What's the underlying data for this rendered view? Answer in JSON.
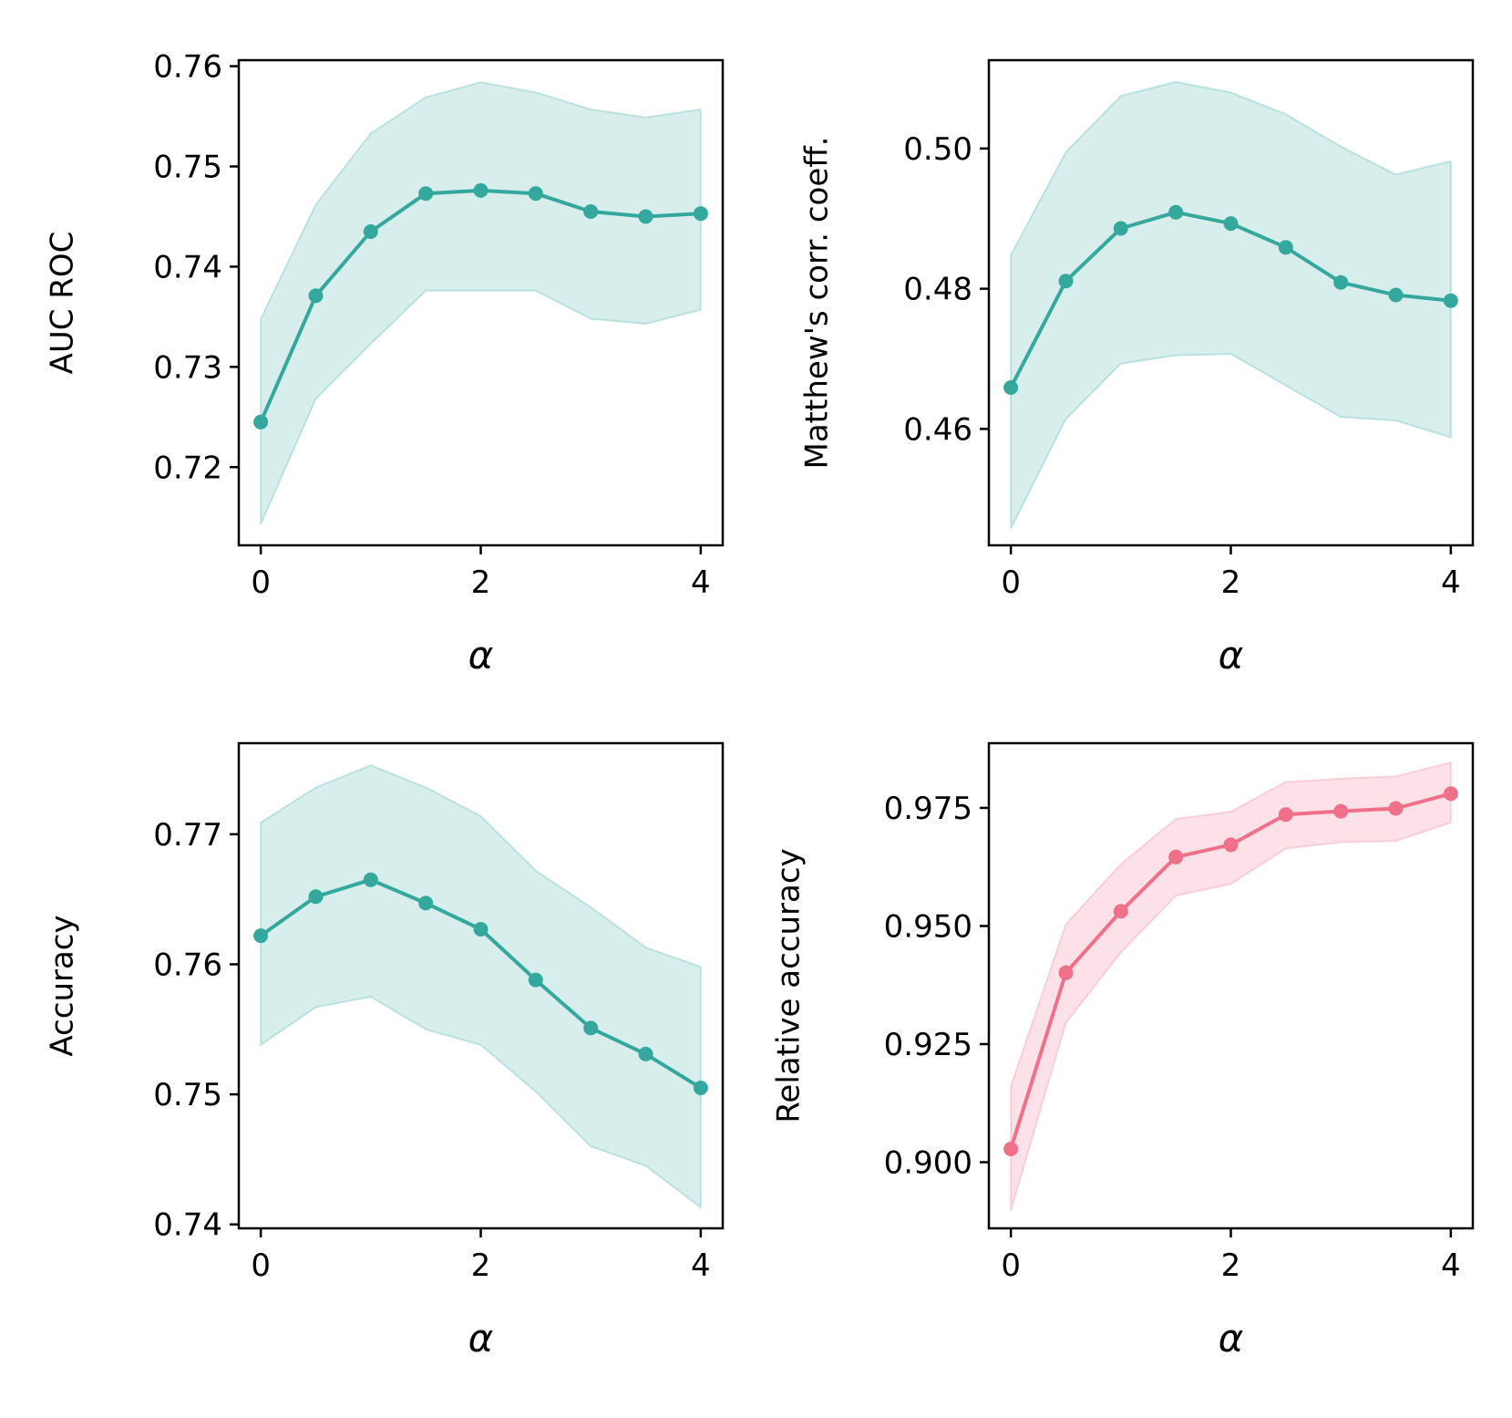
{
  "chart_data": [
    {
      "id": "auc",
      "type": "line",
      "xlabel": "α",
      "ylabel": "AUC ROC",
      "color": "#35a89e",
      "band_color": "#35a89e",
      "x": [
        0,
        0.5,
        1,
        1.5,
        2,
        2.5,
        3,
        3.5,
        4
      ],
      "y": [
        0.7245,
        0.7371,
        0.7435,
        0.7473,
        0.7476,
        0.7473,
        0.7455,
        0.745,
        0.7453
      ],
      "y_lower": [
        0.7143,
        0.7268,
        0.7323,
        0.7376,
        0.7376,
        0.7376,
        0.7348,
        0.7343,
        0.7357
      ],
      "y_upper": [
        0.7348,
        0.7462,
        0.7533,
        0.7569,
        0.7584,
        0.7574,
        0.7557,
        0.7549,
        0.7557
      ],
      "xlim": [
        -0.2,
        4.2
      ],
      "ylim": [
        0.7122,
        0.7606
      ],
      "xticks": [
        0,
        2,
        4
      ],
      "xtick_labels": [
        "0",
        "2",
        "4"
      ],
      "yticks": [
        0.72,
        0.73,
        0.74,
        0.75,
        0.76
      ],
      "ytick_labels": [
        "0.72",
        "0.73",
        "0.74",
        "0.75",
        "0.76"
      ]
    },
    {
      "id": "mcc",
      "type": "line",
      "xlabel": "α",
      "ylabel": "Matthew's corr. coeff.",
      "color": "#35a89e",
      "band_color": "#35a89e",
      "x": [
        0,
        0.5,
        1,
        1.5,
        2,
        2.5,
        3,
        3.5,
        4
      ],
      "y": [
        0.4659,
        0.4811,
        0.4886,
        0.4909,
        0.4893,
        0.4859,
        0.4809,
        0.4791,
        0.4783
      ],
      "y_lower": [
        0.4458,
        0.4614,
        0.4693,
        0.4705,
        0.4707,
        0.4662,
        0.4617,
        0.4612,
        0.4588
      ],
      "y_upper": [
        0.4848,
        0.4995,
        0.5075,
        0.5095,
        0.508,
        0.5049,
        0.5003,
        0.4963,
        0.4982
      ],
      "xlim": [
        -0.2,
        4.2
      ],
      "ylim": [
        0.4434,
        0.5126
      ],
      "xticks": [
        0,
        2,
        4
      ],
      "xtick_labels": [
        "0",
        "2",
        "4"
      ],
      "yticks": [
        0.46,
        0.48,
        0.5
      ],
      "ytick_labels": [
        "0.46",
        "0.48",
        "0.50"
      ]
    },
    {
      "id": "accuracy",
      "type": "line",
      "xlabel": "α",
      "ylabel": "Accuracy",
      "color": "#35a89e",
      "band_color": "#35a89e",
      "x": [
        0,
        0.5,
        1,
        1.5,
        2,
        2.5,
        3,
        3.5,
        4
      ],
      "y": [
        0.7622,
        0.7652,
        0.7665,
        0.7647,
        0.7627,
        0.7588,
        0.7551,
        0.7531,
        0.7505
      ],
      "y_lower": [
        0.7538,
        0.7567,
        0.7575,
        0.755,
        0.7538,
        0.7502,
        0.746,
        0.7445,
        0.7413
      ],
      "y_upper": [
        0.7709,
        0.7736,
        0.7753,
        0.7736,
        0.7714,
        0.7672,
        0.7644,
        0.7613,
        0.7598
      ],
      "xlim": [
        -0.2,
        4.2
      ],
      "ylim": [
        0.7397,
        0.777
      ],
      "xticks": [
        0,
        2,
        4
      ],
      "xtick_labels": [
        "0",
        "2",
        "4"
      ],
      "yticks": [
        0.74,
        0.75,
        0.76,
        0.77
      ],
      "ytick_labels": [
        "0.74",
        "0.75",
        "0.76",
        "0.77"
      ]
    },
    {
      "id": "relative-accuracy",
      "type": "line",
      "xlabel": "α",
      "ylabel": "Relative accuracy",
      "color": "#f0708a",
      "band_color": "#f0708a",
      "x": [
        0,
        0.5,
        1,
        1.5,
        2,
        2.5,
        3,
        3.5,
        4
      ],
      "y": [
        0.9028,
        0.9401,
        0.9531,
        0.9646,
        0.9672,
        0.9736,
        0.9743,
        0.9749,
        0.978
      ],
      "y_lower": [
        0.8897,
        0.9295,
        0.9444,
        0.9564,
        0.9589,
        0.9664,
        0.9677,
        0.968,
        0.9719
      ],
      "y_upper": [
        0.9161,
        0.9504,
        0.9631,
        0.9727,
        0.9742,
        0.9805,
        0.9812,
        0.9817,
        0.9846
      ],
      "xlim": [
        -0.2,
        4.2
      ],
      "ylim": [
        0.886,
        0.9887
      ],
      "xticks": [
        0,
        2,
        4
      ],
      "xtick_labels": [
        "0",
        "2",
        "4"
      ],
      "yticks": [
        0.9,
        0.925,
        0.95,
        0.975
      ],
      "ytick_labels": [
        "0.900",
        "0.925",
        "0.950",
        "0.975"
      ]
    }
  ]
}
